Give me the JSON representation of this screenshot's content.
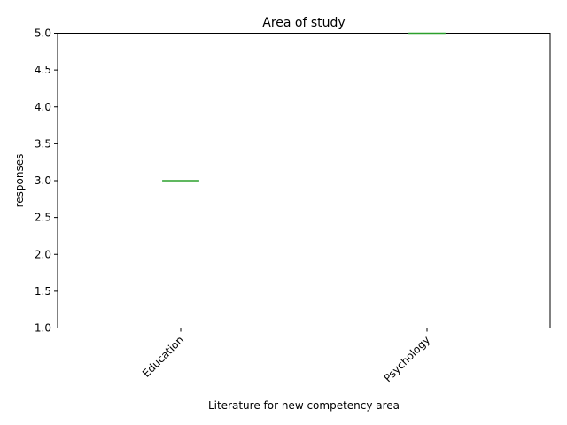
{
  "chart_data": {
    "type": "box",
    "title": "Area of study",
    "xlabel": "Literature for new competency area",
    "ylabel": "responses",
    "categories": [
      "Education",
      "Psychology"
    ],
    "values": [
      3.0,
      5.0
    ],
    "ylim": [
      1.0,
      5.0
    ],
    "yticks": [
      "1.0",
      "1.5",
      "2.0",
      "2.5",
      "3.0",
      "3.5",
      "4.0",
      "4.5",
      "5.0"
    ],
    "grid": false,
    "colors": {
      "median": "#2ca02c",
      "box": "#1f77b4",
      "axes": "#000000"
    }
  }
}
